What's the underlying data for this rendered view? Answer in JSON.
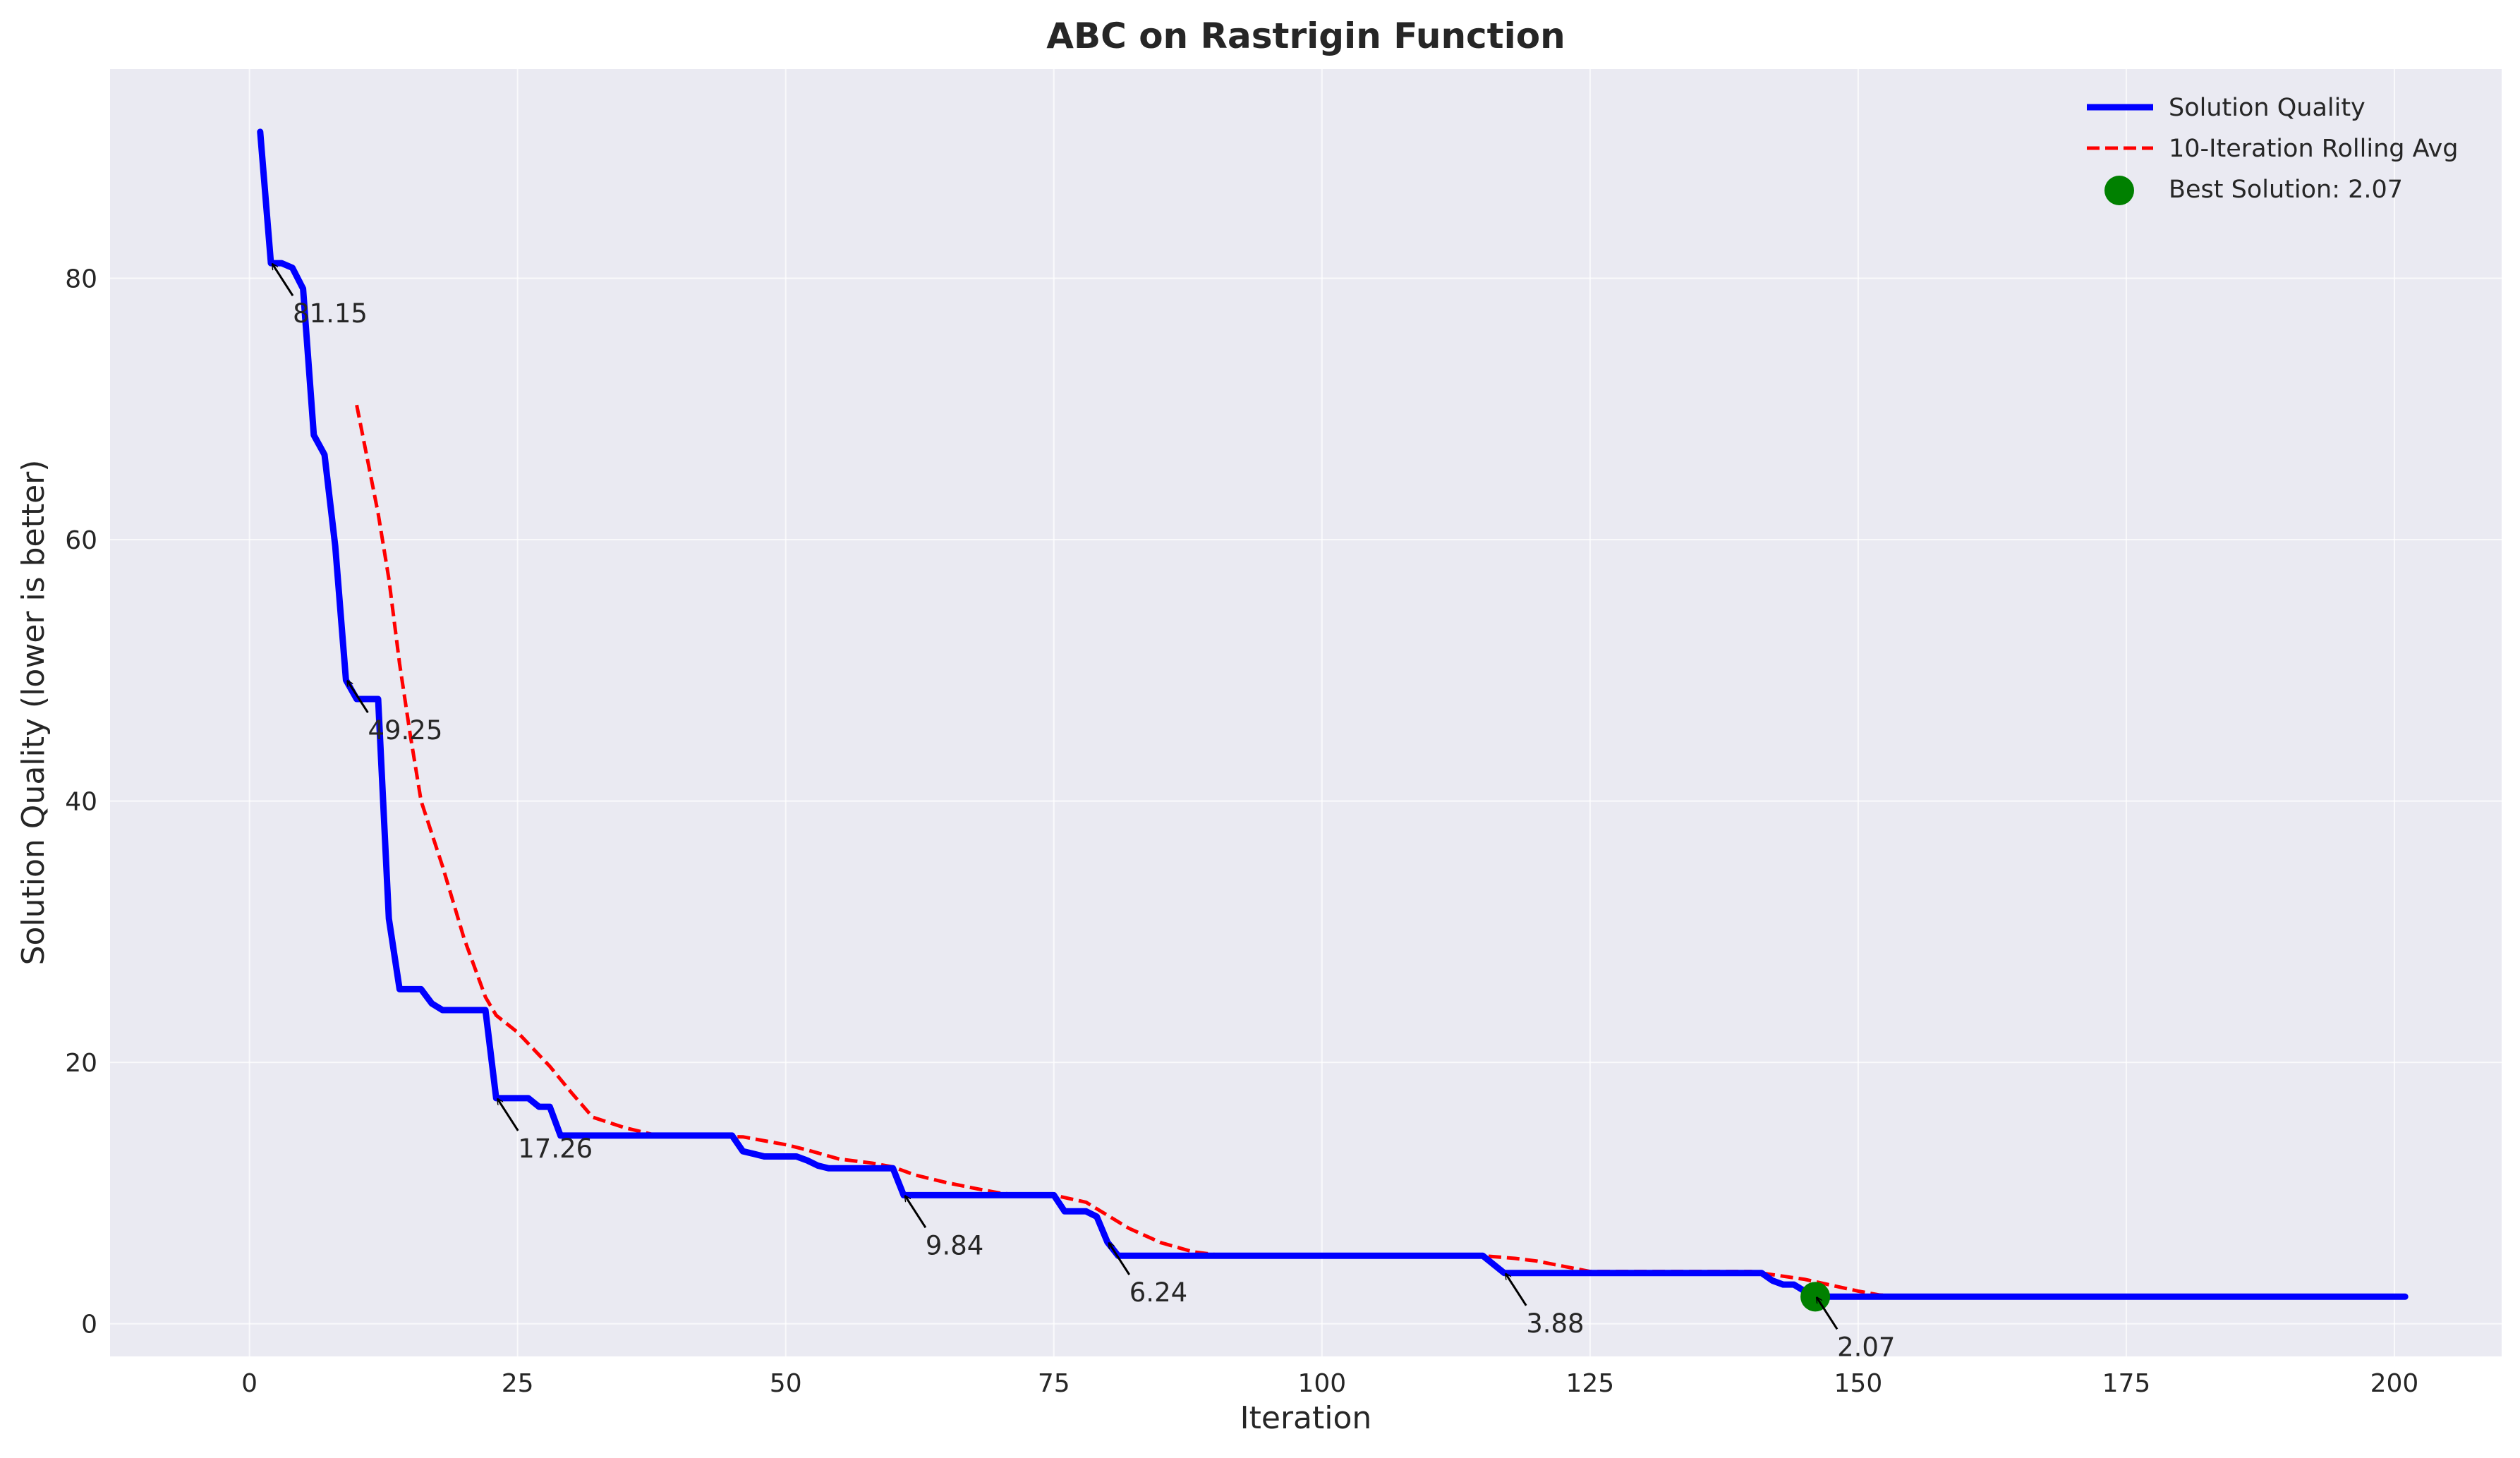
{
  "chart_data": {
    "type": "line",
    "title": "ABC on Rastrigin Function",
    "xlabel": "Iteration",
    "ylabel": "Solution Quality (lower is better)",
    "xlim": [
      -13,
      210
    ],
    "ylim": [
      -2.5,
      96
    ],
    "xticks": [
      0,
      25,
      50,
      75,
      100,
      125,
      150,
      175,
      200
    ],
    "yticks": [
      0,
      20,
      40,
      60,
      80
    ],
    "grid": true,
    "legend_position": "top-right",
    "colors": {
      "solution": "#0000ff",
      "rolling": "#ff0000",
      "best": "#008000",
      "background": "#eaeaf2"
    },
    "series": [
      {
        "name": "Solution Quality",
        "style": "solid",
        "x": [
          1,
          2,
          3,
          4,
          5,
          6,
          7,
          8,
          9,
          10,
          11,
          12,
          13,
          14,
          15,
          16,
          17,
          18,
          19,
          20,
          21,
          22,
          23,
          24,
          25,
          26,
          27,
          28,
          29,
          30,
          45,
          46,
          47,
          48,
          49,
          50,
          51,
          52,
          53,
          54,
          55,
          56,
          57,
          58,
          59,
          60,
          61,
          62,
          63,
          70,
          75,
          76,
          77,
          78,
          79,
          80,
          81,
          82,
          85,
          90,
          100,
          110,
          115,
          117,
          118,
          120,
          140,
          141,
          142,
          143,
          144,
          145,
          146,
          147,
          148,
          150,
          175,
          201
        ],
        "values": [
          91.2,
          81.15,
          81.15,
          80.8,
          79.2,
          68.0,
          66.5,
          59.5,
          49.25,
          47.8,
          47.8,
          47.8,
          31.0,
          25.6,
          25.6,
          25.6,
          24.5,
          24.0,
          24.0,
          24.0,
          24.0,
          24.0,
          17.26,
          17.26,
          17.26,
          17.26,
          16.6,
          16.6,
          14.4,
          14.4,
          14.4,
          13.2,
          13.0,
          12.8,
          12.8,
          12.8,
          12.8,
          12.5,
          12.1,
          11.9,
          11.9,
          11.9,
          11.9,
          11.9,
          11.9,
          11.9,
          9.84,
          9.84,
          9.84,
          9.84,
          9.84,
          8.6,
          8.6,
          8.6,
          8.2,
          6.24,
          5.2,
          5.2,
          5.2,
          5.2,
          5.2,
          5.2,
          5.2,
          3.88,
          3.88,
          3.88,
          3.88,
          3.88,
          3.3,
          3.0,
          3.0,
          2.5,
          2.07,
          2.07,
          2.07,
          2.07,
          2.07,
          2.07
        ]
      },
      {
        "name": "10-Iteration Rolling Avg",
        "style": "dashed",
        "x": [
          10,
          12,
          13,
          14,
          15,
          16,
          18,
          20,
          22,
          23,
          25,
          28,
          30,
          32,
          35,
          38,
          46,
          50,
          52,
          55,
          58,
          60,
          62,
          65,
          68,
          70,
          72,
          75,
          78,
          80,
          82,
          85,
          88,
          90,
          115,
          118,
          120,
          125,
          140,
          145,
          150,
          152,
          155,
          201
        ],
        "values": [
          70.3,
          62.0,
          57.0,
          50.5,
          45.0,
          40.0,
          35.0,
          29.5,
          25.0,
          23.6,
          22.3,
          19.7,
          17.7,
          15.8,
          15.0,
          14.4,
          14.3,
          13.7,
          13.3,
          12.6,
          12.3,
          12.0,
          11.4,
          10.8,
          10.3,
          10.0,
          9.84,
          9.84,
          9.3,
          8.3,
          7.3,
          6.2,
          5.5,
          5.3,
          5.2,
          5.0,
          4.8,
          4.0,
          4.0,
          3.4,
          2.5,
          2.2,
          2.07,
          2.07
        ]
      }
    ],
    "best_point": {
      "label": "Best Solution: 2.07",
      "x": 146,
      "y": 2.07
    },
    "annotations": [
      {
        "text": "81.15",
        "x": 2,
        "y": 81.15
      },
      {
        "text": "49.25",
        "x": 9,
        "y": 49.25
      },
      {
        "text": "17.26",
        "x": 23,
        "y": 17.26
      },
      {
        "text": "9.84",
        "x": 61,
        "y": 9.84
      },
      {
        "text": "6.24",
        "x": 80,
        "y": 6.24
      },
      {
        "text": "3.88",
        "x": 117,
        "y": 3.88
      },
      {
        "text": "2.07",
        "x": 146,
        "y": 2.07
      }
    ]
  }
}
